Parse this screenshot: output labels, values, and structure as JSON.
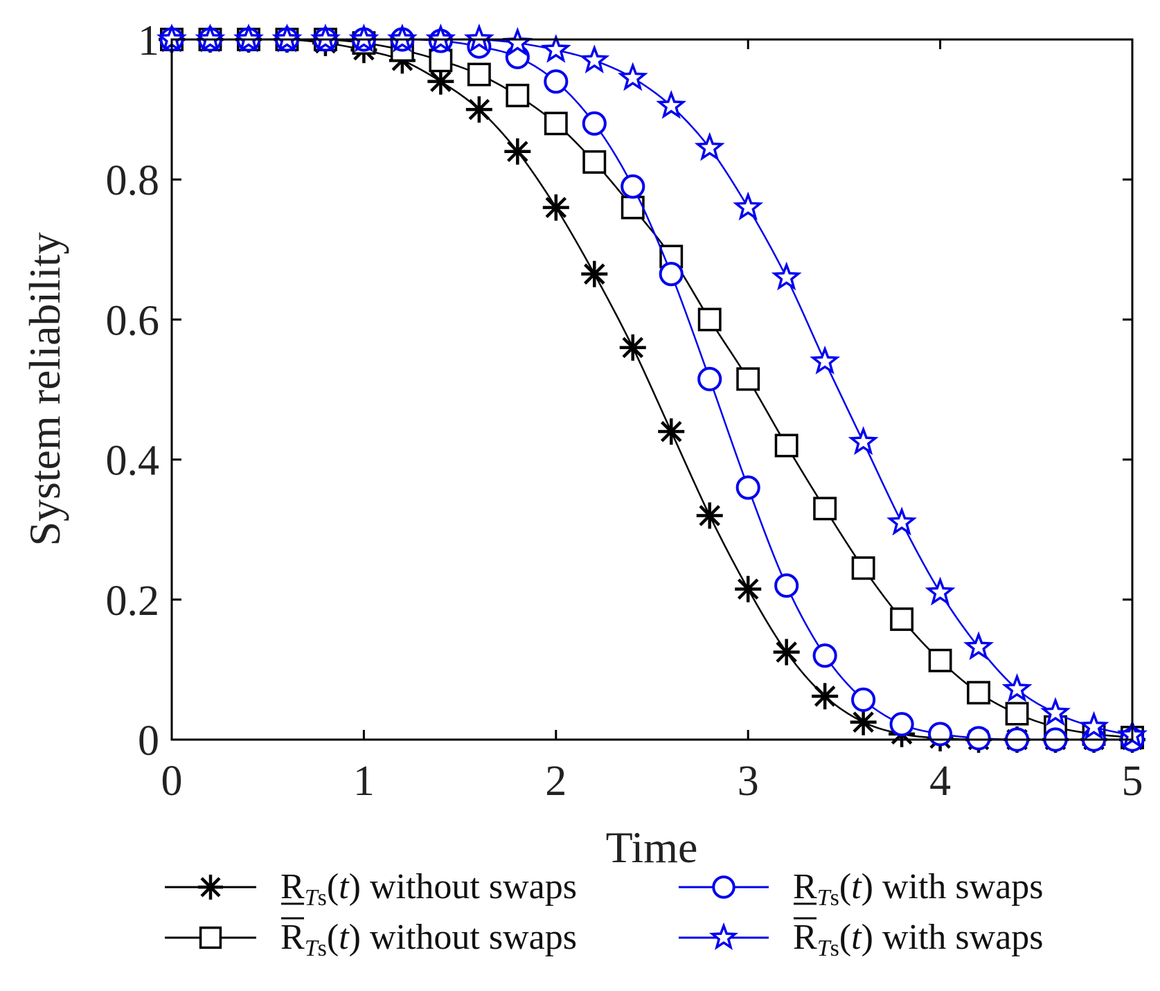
{
  "chart_data": {
    "type": "line",
    "xlabel": "Time",
    "ylabel": "System reliability",
    "xlim": [
      0,
      5
    ],
    "ylim": [
      0,
      1
    ],
    "xticks": [
      "0",
      "1",
      "2",
      "3",
      "4",
      "5"
    ],
    "yticks": [
      "0",
      "0.2",
      "0.4",
      "0.6",
      "0.8",
      "1"
    ],
    "grid": false,
    "legend_position": "bottom",
    "x": [
      0,
      0.2,
      0.4,
      0.6,
      0.8,
      1.0,
      1.2,
      1.4,
      1.6,
      1.8,
      2.0,
      2.2,
      2.4,
      2.6,
      2.8,
      3.0,
      3.2,
      3.4,
      3.6,
      3.8,
      4.0,
      4.2,
      4.4,
      4.6,
      4.8,
      5.0
    ],
    "series": [
      {
        "name": "R_Ts(t) without swaps",
        "legend": {
          "base": "R",
          "sub": "T",
          "sub2": "s",
          "arg": "(",
          "argvar": "t",
          "argclose": ")",
          "rest": " without swaps",
          "bar": "under"
        },
        "color": "#000000",
        "marker": "asterisk",
        "values": [
          1.0,
          1.0,
          1.0,
          1.0,
          0.995,
          0.985,
          0.97,
          0.94,
          0.9,
          0.84,
          0.76,
          0.665,
          0.56,
          0.44,
          0.32,
          0.215,
          0.125,
          0.062,
          0.025,
          0.008,
          0.002,
          0.0,
          0.0,
          0.0,
          0.0,
          0.0
        ]
      },
      {
        "name": "R̄_Ts(t) without swaps",
        "legend": {
          "base": "R",
          "sub": "T",
          "sub2": "s",
          "arg": "(",
          "argvar": "t",
          "argclose": ")",
          "rest": " without swaps",
          "bar": "over"
        },
        "color": "#000000",
        "marker": "square",
        "values": [
          1.0,
          1.0,
          1.0,
          1.0,
          1.0,
          0.995,
          0.985,
          0.97,
          0.95,
          0.92,
          0.88,
          0.825,
          0.76,
          0.69,
          0.6,
          0.515,
          0.42,
          0.33,
          0.245,
          0.172,
          0.113,
          0.067,
          0.037,
          0.018,
          0.008,
          0.003
        ]
      },
      {
        "name": "R_Ts(t) with swaps",
        "legend": {
          "base": "R",
          "sub": "T",
          "sub2": "s",
          "arg": "(",
          "argvar": "t",
          "argclose": ")",
          "rest": " with swaps",
          "bar": "under"
        },
        "color": "#0000ee",
        "marker": "circle",
        "values": [
          1.0,
          1.0,
          1.0,
          1.0,
          1.0,
          1.0,
          1.0,
          0.998,
          0.99,
          0.975,
          0.94,
          0.88,
          0.79,
          0.665,
          0.515,
          0.36,
          0.22,
          0.12,
          0.057,
          0.022,
          0.008,
          0.002,
          0.0,
          0.0,
          0.0,
          0.0
        ]
      },
      {
        "name": "R̄_Ts(t) with swaps",
        "legend": {
          "base": "R",
          "sub": "T",
          "sub2": "s",
          "arg": "(",
          "argvar": "t",
          "argclose": ")",
          "rest": " with swaps",
          "bar": "over"
        },
        "color": "#0000ee",
        "marker": "star",
        "values": [
          1.0,
          1.0,
          1.0,
          1.0,
          1.0,
          1.0,
          1.0,
          1.0,
          1.0,
          0.995,
          0.985,
          0.97,
          0.945,
          0.905,
          0.845,
          0.76,
          0.66,
          0.54,
          0.425,
          0.31,
          0.21,
          0.132,
          0.072,
          0.038,
          0.018,
          0.006
        ]
      }
    ]
  }
}
